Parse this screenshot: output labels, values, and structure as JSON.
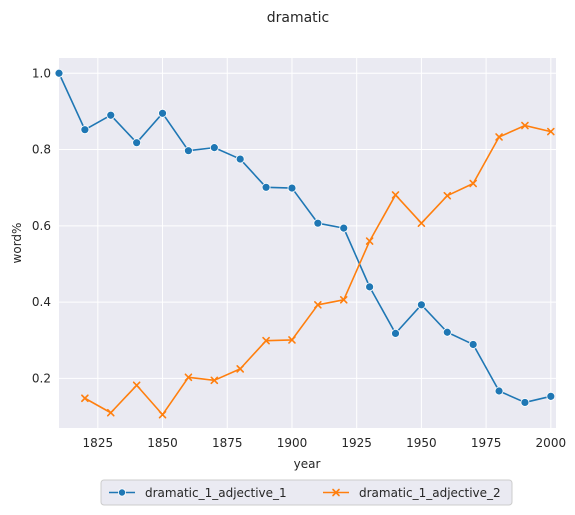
{
  "chart_data": {
    "type": "line",
    "title": "dramatic",
    "xlabel": "year",
    "ylabel": "word%",
    "xlim": [
      1810,
      2002
    ],
    "ylim": [
      0.07,
      1.04
    ],
    "xticks": [
      1825,
      1850,
      1875,
      1900,
      1925,
      1950,
      1975,
      2000
    ],
    "yticks": [
      0.2,
      0.4,
      0.6,
      0.8,
      1.0
    ],
    "xtick_labels": [
      "1825",
      "1850",
      "1875",
      "1900",
      "1925",
      "1950",
      "1975",
      "2000"
    ],
    "ytick_labels": [
      "0.2",
      "0.4",
      "0.6",
      "0.8",
      "1.0"
    ],
    "grid": true,
    "legend_position": "bottom-center",
    "series": [
      {
        "name": "dramatic_1_adjective_1",
        "color": "#1f77b4",
        "marker": "circle",
        "x": [
          1810,
          1820,
          1830,
          1840,
          1850,
          1860,
          1870,
          1880,
          1890,
          1900,
          1910,
          1920,
          1930,
          1940,
          1950,
          1960,
          1970,
          1980,
          1990,
          2000
        ],
        "y": [
          1.0,
          0.852,
          0.89,
          0.818,
          0.895,
          0.797,
          0.805,
          0.775,
          0.701,
          0.699,
          0.607,
          0.594,
          0.44,
          0.318,
          0.393,
          0.321,
          0.289,
          0.167,
          0.137,
          0.153
        ]
      },
      {
        "name": "dramatic_1_adjective_2",
        "color": "#ff7f0e",
        "marker": "x",
        "x": [
          1820,
          1830,
          1840,
          1850,
          1860,
          1870,
          1880,
          1890,
          1900,
          1910,
          1920,
          1930,
          1940,
          1950,
          1960,
          1970,
          1980,
          1990,
          2000
        ],
        "y": [
          0.148,
          0.11,
          0.182,
          0.105,
          0.203,
          0.195,
          0.225,
          0.299,
          0.301,
          0.393,
          0.406,
          0.56,
          0.681,
          0.607,
          0.679,
          0.711,
          0.833,
          0.863,
          0.847
        ]
      }
    ]
  }
}
